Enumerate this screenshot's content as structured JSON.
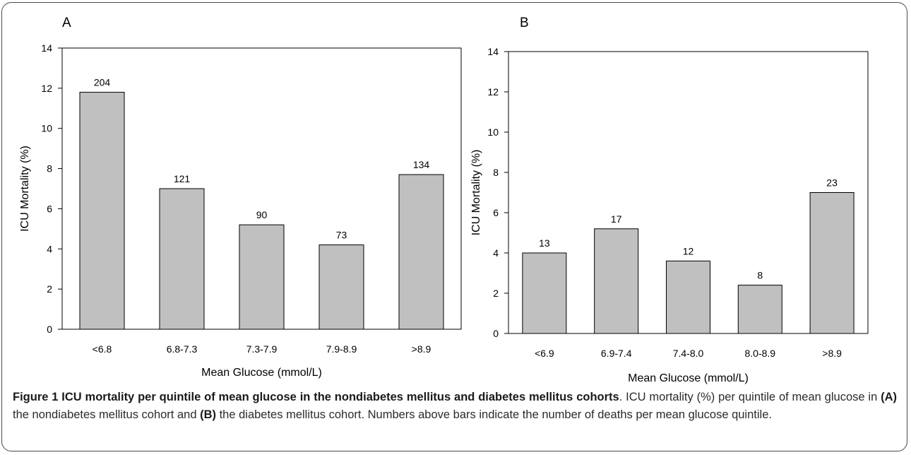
{
  "chart_data": [
    {
      "type": "bar",
      "panel_label": "A",
      "categories": [
        "<6.8",
        "6.8-7.3",
        "7.3-7.9",
        "7.9-8.9",
        ">8.9"
      ],
      "values": [
        11.8,
        7.0,
        5.2,
        4.2,
        7.7
      ],
      "data_labels": [
        "204",
        "121",
        "90",
        "73",
        "134"
      ],
      "xlabel": "Mean Glucose (mmol/L)",
      "ylabel": "ICU Mortality (%)",
      "ylim": [
        0,
        14
      ],
      "yticks": [
        "0",
        "2",
        "4",
        "6",
        "8",
        "10",
        "12",
        "14"
      ],
      "bar_color": "#c0c0c0",
      "grid": false
    },
    {
      "type": "bar",
      "panel_label": "B",
      "categories": [
        "<6.9",
        "6.9-7.4",
        "7.4-8.0",
        "8.0-8.9",
        ">8.9"
      ],
      "values": [
        4.0,
        5.2,
        3.6,
        2.4,
        7.0
      ],
      "data_labels": [
        "13",
        "17",
        "12",
        "8",
        "23"
      ],
      "xlabel": "Mean Glucose (mmol/L)",
      "ylabel": "ICU Mortality (%)",
      "ylim": [
        0,
        14
      ],
      "yticks": [
        "0",
        "2",
        "4",
        "6",
        "8",
        "10",
        "12",
        "14"
      ],
      "bar_color": "#c0c0c0",
      "grid": false
    }
  ],
  "caption": {
    "title": "Figure 1 ICU mortality per quintile of mean glucose in the nondiabetes mellitus and diabetes mellitus cohorts",
    "text_1": ". ICU mortality (%) per quintile of mean glucose in ",
    "a_label": "(A)",
    "text_2": " the nondiabetes mellitus cohort and ",
    "b_label": "(B)",
    "text_3": " the diabetes mellitus cohort. Numbers above bars indicate the number of deaths per mean glucose quintile."
  }
}
